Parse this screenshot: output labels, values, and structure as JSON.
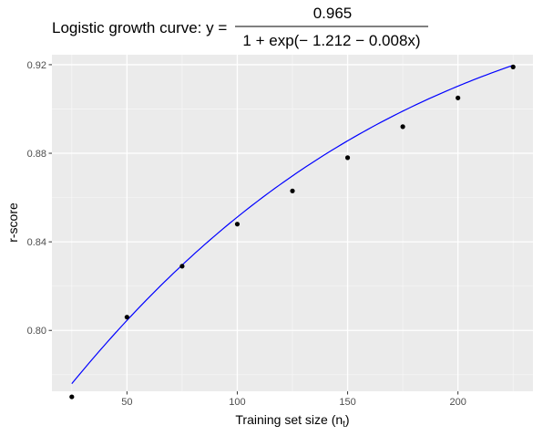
{
  "chart_data": {
    "type": "scatter",
    "title": {
      "prefix": "Logistic growth curve: y = ",
      "numerator": "0.965",
      "denominator": "1 + exp(− 1.212 − 0.008x)"
    },
    "xlabel": "Training set size (n",
    "xlabel_subscript": "t",
    "xlabel_suffix": ")",
    "ylabel": "r-score",
    "xlim": [
      16,
      234
    ],
    "ylim": [
      0.7725,
      0.9245
    ],
    "x_ticks": [
      50,
      100,
      150,
      200
    ],
    "y_ticks": [
      0.8,
      0.84,
      0.88,
      0.92
    ],
    "x_tick_labels": [
      "50",
      "100",
      "150",
      "200"
    ],
    "y_tick_labels": [
      "0.80",
      "0.84",
      "0.88",
      "0.92"
    ],
    "grid": true,
    "background": "#ebebeb",
    "grid_major_color": "#ffffff",
    "curve_color": "#0000ff",
    "point_color": "#000000",
    "points": {
      "x": [
        25,
        50,
        75,
        100,
        125,
        150,
        175,
        200,
        225
      ],
      "y": [
        0.77,
        0.806,
        0.829,
        0.848,
        0.863,
        0.878,
        0.892,
        0.905,
        0.919
      ]
    },
    "fit": {
      "amplitude": 0.965,
      "intercept": 1.212,
      "slope": 0.008,
      "x_range": [
        25,
        225
      ]
    }
  }
}
